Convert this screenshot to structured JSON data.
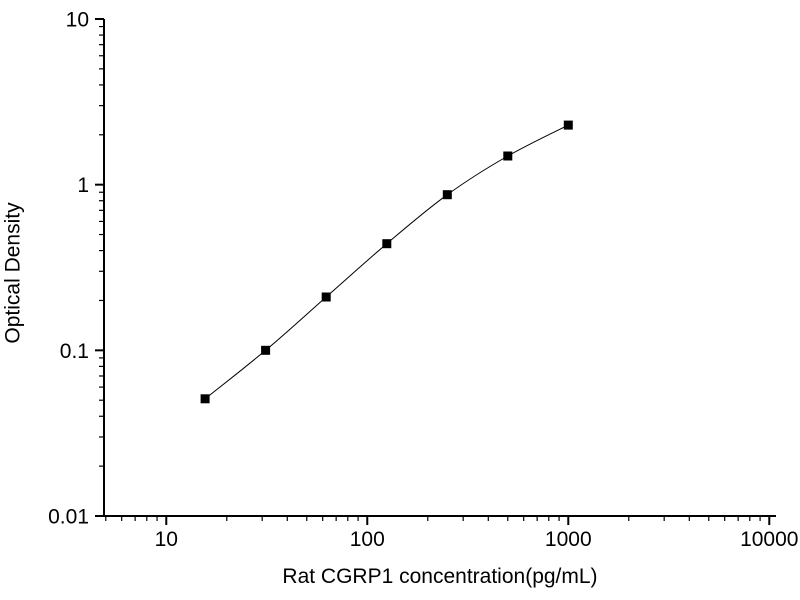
{
  "figure": {
    "background_color": "#ffffff",
    "axis_color": "#000000"
  },
  "chart_data": {
    "type": "line",
    "title": "",
    "xlabel": "Rat CGRP1 concentration(pg/mL)",
    "ylabel": "Optical Density",
    "x_scale": "log",
    "y_scale": "log",
    "xlim": [
      4.9,
      10800
    ],
    "ylim": [
      0.01,
      10
    ],
    "x": [
      15.6,
      31.2,
      62.5,
      125,
      250,
      500,
      1000
    ],
    "y": [
      0.051,
      0.1,
      0.21,
      0.44,
      0.87,
      1.49,
      2.29
    ],
    "x_tick_values": [
      10,
      100,
      1000,
      10000
    ],
    "x_tick_labels": [
      "10",
      "100",
      "1000",
      "10000"
    ],
    "y_tick_values": [
      0.01,
      0.1,
      1,
      10
    ],
    "y_tick_labels": [
      "0.01",
      "0.1",
      "1",
      "10"
    ],
    "grid": "off",
    "legend": "none",
    "marker_shape": "filled-square",
    "marker_color": "#000000",
    "line_color": "#000000"
  }
}
